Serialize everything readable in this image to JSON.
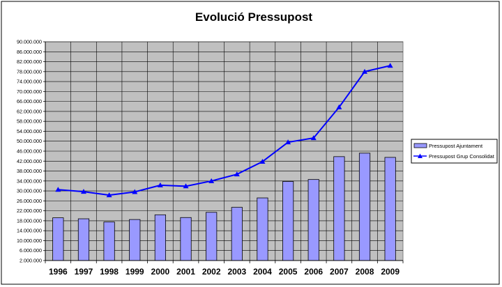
{
  "chart_data": {
    "type": "bar",
    "title": "Evolució Pressupost",
    "xlabel": "",
    "ylabel": "",
    "categories": [
      "1996",
      "1997",
      "1998",
      "1999",
      "2000",
      "2001",
      "2002",
      "2003",
      "2004",
      "2005",
      "2006",
      "2007",
      "2008",
      "2009"
    ],
    "ylim": [
      2000000,
      90000000
    ],
    "yticks": [
      2000000,
      6000000,
      10000000,
      14000000,
      18000000,
      22000000,
      26000000,
      30000000,
      34000000,
      38000000,
      42000000,
      46000000,
      50000000,
      54000000,
      58000000,
      62000000,
      66000000,
      70000000,
      74000000,
      78000000,
      82000000,
      86000000,
      90000000
    ],
    "ytick_labels": [
      "2.000.000",
      "6.000.000",
      "10.000.000",
      "14.000.000",
      "18.000.000",
      "22.000.000",
      "26.000.000",
      "30.000.000",
      "34.000.000",
      "38.000.000",
      "42.000.000",
      "46.000.000",
      "50.000.000",
      "54.000.000",
      "58.000.000",
      "62.000.000",
      "66.000.000",
      "70.000.000",
      "74.000.000",
      "78.000.000",
      "82.000.000",
      "86.000.000",
      "90.000.000"
    ],
    "series": [
      {
        "name": "Pressupost Ajuntament",
        "type": "bar",
        "color": "#9999ff",
        "values": [
          19200000,
          18800000,
          17500000,
          18500000,
          20400000,
          19300000,
          21400000,
          23400000,
          27200000,
          33800000,
          34600000,
          43800000,
          45200000,
          43500000
        ]
      },
      {
        "name": "Pressupost Grup Consolidat",
        "type": "line",
        "color": "#0000ff",
        "marker": "triangle",
        "values": [
          30500000,
          29700000,
          28300000,
          29600000,
          32300000,
          31900000,
          34000000,
          36700000,
          41800000,
          49600000,
          51300000,
          63700000,
          78000000,
          80400000
        ]
      }
    ],
    "grid": true,
    "plot_background": "#c0c0c0",
    "legend_position": "right"
  }
}
